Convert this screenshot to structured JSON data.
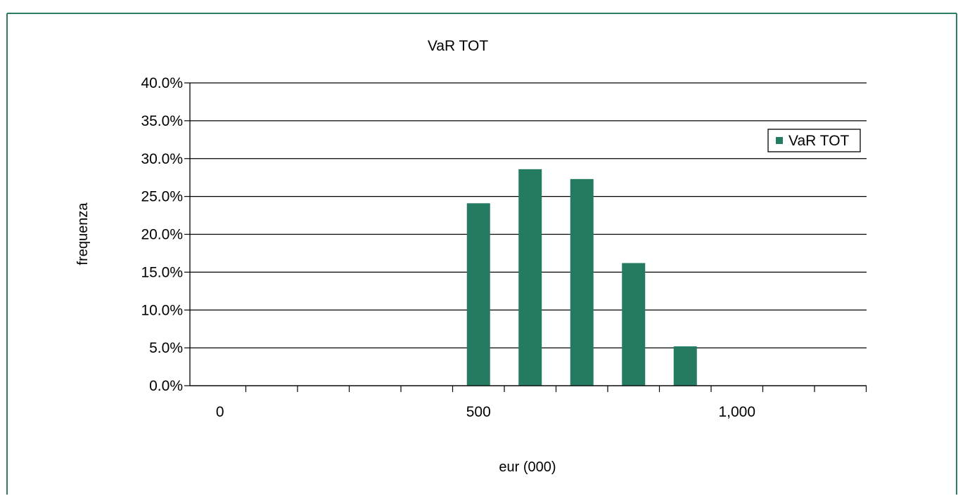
{
  "colors": {
    "frame": "#2E7D63",
    "bar": "#257A62",
    "grid": "#000000",
    "background": "#FFFFFF"
  },
  "chart_data": {
    "type": "bar",
    "title": "VaR TOT",
    "xlabel": "eur (000)",
    "ylabel": "frequenza",
    "ylim": [
      0,
      0.4
    ],
    "y_ticks": [
      0,
      0.05,
      0.1,
      0.15,
      0.2,
      0.25,
      0.3,
      0.35,
      0.4
    ],
    "y_tick_labels": [
      "0.0%",
      "5.0%",
      "10.0%",
      "15.0%",
      "20.0%",
      "25.0%",
      "30.0%",
      "35.0%",
      "40.0%"
    ],
    "x_tick_labels": [
      "0",
      "500",
      "1,000"
    ],
    "x_tick_label_positions": [
      0,
      5,
      10
    ],
    "category_count": 13,
    "grid": true,
    "legend": {
      "placement": "top-right",
      "entries": [
        "VaR TOT"
      ]
    },
    "series": [
      {
        "name": "VaR TOT",
        "values": [
          0,
          0,
          0,
          0,
          0,
          0.241,
          0.286,
          0.273,
          0.162,
          0.052,
          0,
          0,
          0
        ]
      }
    ]
  }
}
